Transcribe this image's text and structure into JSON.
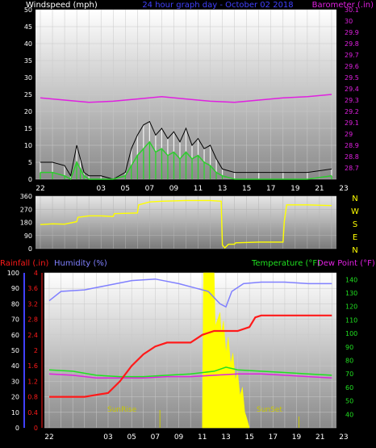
{
  "header": {
    "left_label": "Windspeed (mph)",
    "center_title": "24 hour graph day - October 02 2018",
    "right_label": "Barometer (.in)"
  },
  "colors": {
    "background": "#000000",
    "panel_top": "#ffffff",
    "panel_bottom": "#8a8a8a",
    "wind_avg": "#2ecc2e",
    "wind_gust": "#f2f2f2",
    "barometer": "#e020e0",
    "wind_dir": "#ffff00",
    "rainfall": "#ff1a1a",
    "humidity": "#8080ff",
    "temperature": "#20e020",
    "dew_point": "#e020e0",
    "solar": "#ffff00",
    "label_blue": "#4040ff",
    "label_yellow": "#ffff00"
  },
  "x_ticks": [
    "22",
    "03",
    "05",
    "07",
    "09",
    "11",
    "13",
    "15",
    "17",
    "19",
    "21",
    "23"
  ],
  "chart_data": [
    {
      "type": "line",
      "name": "wind",
      "title": "24 hour graph day - October 02 2018",
      "ylabel_left": "Windspeed (mph)",
      "ylabel_right": "Barometer (.in)",
      "ylim": [
        0,
        50
      ],
      "yticks_left": [
        "0",
        "5",
        "10",
        "15",
        "20",
        "25",
        "30",
        "35",
        "40",
        "45",
        "50"
      ],
      "ylim_right": [
        28.6,
        30.1
      ],
      "yticks_right": [
        "28.7",
        "28.8",
        "28.9",
        "29",
        "29.1",
        "29.2",
        "29.3",
        "29.4",
        "29.5",
        "29.6",
        "29.7",
        "29.8",
        "29.9",
        "30",
        "30.1"
      ],
      "series": [
        {
          "name": "Barometer",
          "axis": "right",
          "x": [
            0,
            2,
            4,
            6,
            8,
            10,
            12,
            14,
            16,
            18,
            20,
            22,
            24
          ],
          "values": [
            29.32,
            29.3,
            29.28,
            29.29,
            29.31,
            29.33,
            29.31,
            29.29,
            29.28,
            29.3,
            29.32,
            29.33,
            29.35
          ]
        },
        {
          "name": "Wind gust",
          "axis": "left",
          "x": [
            0,
            1,
            2,
            2.5,
            3,
            3.3,
            3.6,
            4,
            5,
            6,
            7,
            7.5,
            8,
            8.5,
            9,
            9.5,
            10,
            10.5,
            11,
            11.5,
            12,
            12.5,
            13,
            13.5,
            14,
            14.5,
            15,
            16,
            18,
            20,
            22,
            24
          ],
          "values": [
            5,
            5,
            4,
            1,
            10,
            6,
            2,
            1,
            1,
            0,
            2,
            9,
            13,
            16,
            17,
            13,
            15,
            12,
            14,
            11,
            15,
            10,
            12,
            9,
            10,
            6,
            3,
            2,
            2,
            2,
            2,
            3
          ]
        },
        {
          "name": "Wind average",
          "axis": "left",
          "x": [
            0,
            1,
            2,
            2.5,
            3,
            3.3,
            3.6,
            4,
            5,
            6,
            7,
            7.5,
            8,
            8.5,
            9,
            9.5,
            10,
            10.5,
            11,
            11.5,
            12,
            12.5,
            13,
            13.5,
            14,
            14.5,
            15,
            16,
            18,
            20,
            22,
            24
          ],
          "values": [
            2,
            2,
            1,
            0,
            5,
            3,
            1,
            0,
            0,
            0,
            1,
            4,
            7,
            9,
            11,
            8,
            9,
            7,
            8,
            6,
            8,
            6,
            7,
            5,
            4,
            2,
            1,
            0,
            0,
            0,
            0,
            1
          ]
        }
      ]
    },
    {
      "type": "line",
      "name": "wind_direction",
      "ylim": [
        0,
        360
      ],
      "yticks": [
        "0",
        "90",
        "180",
        "270",
        "360"
      ],
      "compass": [
        "N",
        "W",
        "S",
        "E",
        "N"
      ],
      "series": [
        {
          "name": "Direction",
          "x": [
            0,
            1,
            2,
            3,
            3.1,
            4,
            5,
            6,
            6.1,
            8,
            8.1,
            9,
            10,
            12,
            14,
            14.9,
            15,
            15.2,
            15.5,
            16,
            16.1,
            18,
            18.1,
            19.5,
            20,
            20.1,
            20.3,
            22,
            24
          ],
          "values": [
            165,
            170,
            168,
            185,
            215,
            225,
            225,
            220,
            240,
            245,
            300,
            320,
            325,
            330,
            330,
            325,
            25,
            5,
            30,
            30,
            40,
            45,
            45,
            45,
            45,
            185,
            300,
            300,
            295
          ]
        }
      ]
    },
    {
      "type": "line",
      "name": "rain_humidity_temp",
      "ylabel_rain": "Rainfall (.in)",
      "ylabel_humidity": "Humidity (%)",
      "ylabel_temp": "Temperature (°F)",
      "ylabel_dew": "Dew Point (°F)",
      "ylim_humidity": [
        0,
        100
      ],
      "yticks_humidity": [
        "0",
        "10",
        "20",
        "30",
        "40",
        "50",
        "60",
        "70",
        "80",
        "90",
        "100"
      ],
      "ylim_rain": [
        0,
        4
      ],
      "yticks_rain": [
        "0",
        "0.4",
        "0.8",
        "1.2",
        "1.6",
        "2",
        "2.4",
        "2.8",
        "3.2",
        "3.6",
        "4"
      ],
      "ylim_temp": [
        30,
        145
      ],
      "yticks_temp": [
        "40",
        "50",
        "60",
        "70",
        "80",
        "90",
        "100",
        "110",
        "120",
        "130",
        "140"
      ],
      "annotations": [
        "SunRise",
        "SunSet"
      ],
      "series": [
        {
          "name": "Humidity",
          "x": [
            0,
            1,
            3,
            5,
            7,
            9,
            11,
            12.5,
            13.5,
            14.5,
            15,
            15.5,
            16.5,
            18,
            20,
            22,
            24
          ],
          "values": [
            82,
            88,
            89,
            92,
            95,
            96,
            93,
            90,
            88,
            80,
            78,
            88,
            93,
            94,
            94,
            93,
            93
          ]
        },
        {
          "name": "Rainfall",
          "x": [
            0,
            3,
            5,
            6,
            7,
            8,
            9,
            10,
            11,
            12,
            13,
            14,
            15,
            16,
            17,
            17.5,
            18,
            22,
            24
          ],
          "values": [
            0.8,
            0.8,
            0.9,
            1.2,
            1.6,
            1.9,
            2.1,
            2.2,
            2.2,
            2.2,
            2.4,
            2.5,
            2.5,
            2.5,
            2.6,
            2.85,
            2.9,
            2.9,
            2.9
          ]
        },
        {
          "name": "Temperature",
          "x": [
            0,
            2,
            4,
            6,
            8,
            10,
            12,
            14,
            15,
            15.5,
            16,
            18,
            20,
            22,
            24
          ],
          "values": [
            73,
            72,
            69,
            68,
            68,
            69,
            70,
            72,
            75,
            74,
            73,
            72,
            71,
            70,
            69
          ]
        },
        {
          "name": "Dew Point",
          "x": [
            0,
            2,
            4,
            6,
            8,
            10,
            12,
            14,
            16,
            18,
            20,
            22,
            24
          ],
          "values": [
            70,
            69,
            67,
            67,
            67,
            68,
            68,
            69,
            70,
            70,
            69,
            68,
            67
          ]
        },
        {
          "name": "Solar",
          "x": [
            13.0,
            13.1,
            14.0,
            14.1,
            14.5,
            14.6,
            14.8,
            15.0,
            15.2,
            15.4,
            15.6,
            15.8,
            16.0,
            16.2,
            16.4,
            16.6,
            16.8,
            17.0
          ],
          "values": [
            0,
            145,
            145,
            95,
            108,
            88,
            100,
            70,
            85,
            60,
            70,
            45,
            52,
            30,
            38,
            15,
            8,
            0
          ]
        }
      ]
    }
  ]
}
